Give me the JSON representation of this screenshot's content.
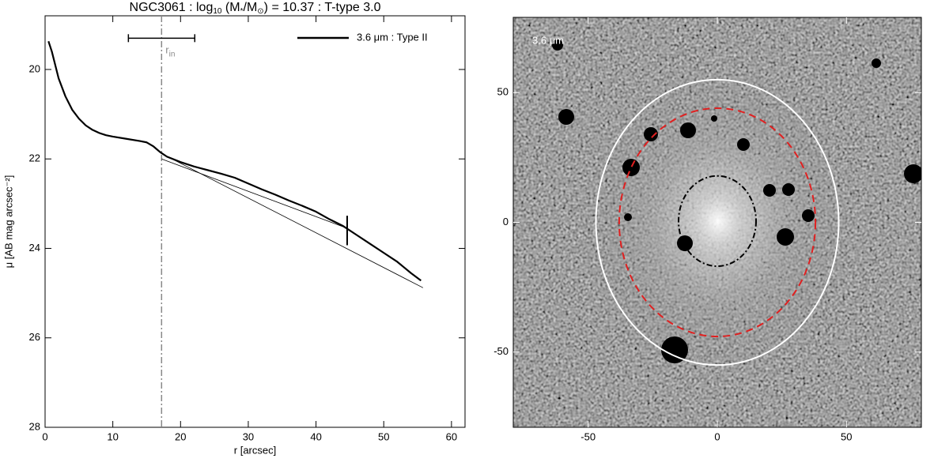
{
  "chart_data": [
    {
      "type": "line",
      "title_parts": [
        "NGC3061 : log",
        "10",
        " (M",
        "*",
        "/M",
        "⊙",
        ") = 10.37 : T-type 3.0"
      ],
      "xlabel": "r [arcsec]",
      "ylabel": "μ [AB mag arcsec⁻²]",
      "xlim": [
        0,
        62
      ],
      "xticks": [
        0,
        10,
        20,
        30,
        40,
        50,
        60
      ],
      "ylim": [
        28,
        18.8
      ],
      "yticks": [
        20,
        22,
        24,
        26,
        28
      ],
      "legend": "upper right",
      "series": [
        {
          "name": "3.6 μm : Type II",
          "color": "#000000",
          "x": [
            0.5,
            1,
            2,
            3,
            4,
            5,
            6,
            7,
            8,
            9,
            10,
            12,
            14,
            15,
            16,
            17,
            18,
            20,
            22,
            24,
            26,
            28,
            30,
            32,
            34,
            36,
            38,
            40,
            42,
            44,
            46,
            48,
            50,
            52,
            54,
            55.5
          ],
          "values": [
            19.37,
            19.6,
            20.2,
            20.6,
            20.9,
            21.1,
            21.25,
            21.35,
            21.42,
            21.47,
            21.5,
            21.55,
            21.6,
            21.63,
            21.72,
            21.85,
            21.95,
            22.07,
            22.17,
            22.25,
            22.33,
            22.42,
            22.55,
            22.68,
            22.8,
            22.93,
            23.05,
            23.18,
            23.35,
            23.5,
            23.7,
            23.9,
            24.1,
            24.3,
            24.55,
            24.72
          ]
        }
      ],
      "fits": [
        {
          "x": [
            17.2,
            44.6
          ],
          "values": [
            22.0,
            23.55
          ]
        },
        {
          "x": [
            17.2,
            55.8
          ],
          "values": [
            21.88,
            24.88
          ]
        }
      ],
      "r_in": {
        "label_parts": [
          "r",
          "in"
        ],
        "x": 17.2,
        "range": [
          12.3,
          22.1
        ],
        "y": 19.3
      },
      "break": {
        "x": 44.6,
        "y": [
          23.27,
          23.93
        ]
      }
    },
    {
      "type": "image",
      "label": "3.6 μm",
      "xlim": [
        -79,
        79
      ],
      "xticks": [
        -50,
        0,
        50
      ],
      "ylim": [
        -79,
        79
      ],
      "yticks": [
        -50,
        0,
        50
      ],
      "ellipses": [
        {
          "cx": 0,
          "cy": 0,
          "rx": 47,
          "ry": 55,
          "color": "#ffffff",
          "style": "solid"
        },
        {
          "cx": 0,
          "cy": 0,
          "rx": 38,
          "ry": 44,
          "color": "#e02020",
          "style": "dashed"
        },
        {
          "cx": 0,
          "cy": 0.5,
          "rx": 15,
          "ry": 17.4,
          "color": "#000000",
          "style": "dashdot"
        }
      ]
    }
  ]
}
